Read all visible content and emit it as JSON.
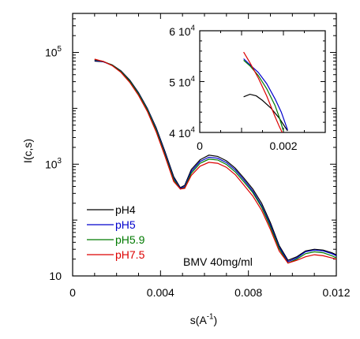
{
  "chart_data": [
    {
      "type": "line",
      "xlabel": "s(A",
      "xlabel_sup": "-1",
      "xlabel_close": ")",
      "ylabel": "I(c,s)",
      "x_scale": "linear",
      "y_scale": "log",
      "xlim": [
        0,
        0.012
      ],
      "ylim": [
        10,
        500000
      ],
      "x_ticks": [
        {
          "value": 0,
          "label": "0"
        },
        {
          "value": 0.004,
          "label": "0.004"
        },
        {
          "value": 0.008,
          "label": "0.008"
        },
        {
          "value": 0.012,
          "label": "0.012"
        }
      ],
      "y_ticks": [
        {
          "value": 10,
          "label": "10",
          "sup": ""
        },
        {
          "value": 1000,
          "label": "10",
          "sup": "3"
        },
        {
          "value": 100000,
          "label": "10",
          "sup": "5"
        }
      ],
      "annotation": "BMV 40mg/ml",
      "grid": false,
      "legend_position": "bottom-left",
      "series": [
        {
          "name": "pH4",
          "color": "#000000",
          "x": [
            0.001,
            0.0014,
            0.0018,
            0.0022,
            0.0026,
            0.003,
            0.0034,
            0.0038,
            0.0042,
            0.0046,
            0.0049,
            0.0051,
            0.0054,
            0.0058,
            0.0062,
            0.0066,
            0.007,
            0.0074,
            0.0078,
            0.0082,
            0.0086,
            0.009,
            0.0094,
            0.0098,
            0.0102,
            0.0106,
            0.011,
            0.0114,
            0.0118,
            0.012
          ],
          "y": [
            70000,
            68000,
            60000,
            47000,
            32000,
            19000,
            10000,
            4500,
            1700,
            600,
            380,
            420,
            800,
            1200,
            1450,
            1380,
            1150,
            850,
            560,
            360,
            200,
            90,
            35,
            19,
            22,
            28,
            30,
            29,
            26,
            24
          ]
        },
        {
          "name": "pH5",
          "color": "#0000cc",
          "x": [
            0.001,
            0.0014,
            0.0018,
            0.0022,
            0.0026,
            0.003,
            0.0034,
            0.0038,
            0.0042,
            0.0046,
            0.0049,
            0.0051,
            0.0054,
            0.0058,
            0.0062,
            0.0066,
            0.007,
            0.0074,
            0.0078,
            0.0082,
            0.0086,
            0.009,
            0.0094,
            0.0098,
            0.0102,
            0.0106,
            0.011,
            0.0114,
            0.0118,
            0.012
          ],
          "y": [
            72000,
            68000,
            59000,
            46000,
            31000,
            18500,
            9700,
            4300,
            1600,
            560,
            370,
            400,
            740,
            1120,
            1330,
            1280,
            1070,
            790,
            520,
            330,
            180,
            82,
            33,
            18,
            21,
            27,
            29,
            28,
            25,
            23
          ]
        },
        {
          "name": "pH5.9",
          "color": "#007a00",
          "x": [
            0.001,
            0.0014,
            0.0018,
            0.0022,
            0.0026,
            0.003,
            0.0034,
            0.0038,
            0.0042,
            0.0046,
            0.0049,
            0.0051,
            0.0054,
            0.0058,
            0.0062,
            0.0066,
            0.007,
            0.0074,
            0.0078,
            0.0082,
            0.0086,
            0.009,
            0.0094,
            0.0098,
            0.0102,
            0.0106,
            0.011,
            0.0114,
            0.0118,
            0.012
          ],
          "y": [
            74000,
            69000,
            59000,
            45500,
            30500,
            18000,
            9400,
            4100,
            1500,
            530,
            360,
            380,
            690,
            1040,
            1230,
            1190,
            990,
            730,
            480,
            310,
            170,
            76,
            31,
            17,
            20,
            25,
            27,
            26,
            23,
            21
          ]
        },
        {
          "name": "pH7.5",
          "color": "#dd0000",
          "x": [
            0.001,
            0.0014,
            0.0018,
            0.0022,
            0.0026,
            0.003,
            0.0034,
            0.0038,
            0.0042,
            0.0046,
            0.0049,
            0.0051,
            0.0054,
            0.0058,
            0.0062,
            0.0066,
            0.007,
            0.0074,
            0.0078,
            0.0082,
            0.0086,
            0.009,
            0.0094,
            0.0098,
            0.0102,
            0.0106,
            0.011,
            0.0114,
            0.0118,
            0.012
          ],
          "y": [
            76000,
            69000,
            58000,
            44000,
            29000,
            17000,
            8800,
            3800,
            1400,
            490,
            360,
            370,
            630,
            920,
            1080,
            1040,
            880,
            650,
            420,
            270,
            150,
            68,
            28,
            17,
            19,
            22,
            24,
            23,
            21,
            20
          ]
        }
      ]
    },
    {
      "type": "line",
      "role": "inset",
      "x_scale": "linear",
      "y_scale": "linear",
      "xlim": [
        0,
        0.003
      ],
      "ylim": [
        40000,
        60000
      ],
      "x_ticks": [
        {
          "value": 0,
          "label": "0"
        },
        {
          "value": 0.002,
          "label": "0.002"
        }
      ],
      "y_ticks": [
        {
          "value": 40000,
          "label": "4 10",
          "sup": "4"
        },
        {
          "value": 50000,
          "label": "5 10",
          "sup": "4"
        },
        {
          "value": 60000,
          "label": "6 10",
          "sup": "4"
        }
      ],
      "grid": false,
      "series": [
        {
          "name": "pH4",
          "color": "#000000",
          "x": [
            0.00105,
            0.0012,
            0.00135,
            0.0015,
            0.0017,
            0.0019,
            0.0021
          ],
          "y": [
            47000,
            47500,
            47200,
            46300,
            44800,
            42800,
            40300
          ]
        },
        {
          "name": "pH5",
          "color": "#0000cc",
          "x": [
            0.00105,
            0.0012,
            0.0014,
            0.0016,
            0.0018,
            0.00195,
            0.0021
          ],
          "y": [
            54500,
            53300,
            51800,
            49600,
            46600,
            44000,
            40500
          ]
        },
        {
          "name": "pH5.9",
          "color": "#007a00",
          "x": [
            0.00105,
            0.0012,
            0.0014,
            0.0016,
            0.0018,
            0.0019,
            0.002
          ],
          "y": [
            54200,
            53100,
            51200,
            48600,
            45300,
            43000,
            40300
          ]
        },
        {
          "name": "pH7.5",
          "color": "#dd0000",
          "x": [
            0.00105,
            0.0012,
            0.0014,
            0.0016,
            0.0018,
            0.0019,
            0.002
          ],
          "y": [
            55800,
            53700,
            50700,
            47200,
            43100,
            41200,
            39500
          ]
        }
      ]
    }
  ]
}
